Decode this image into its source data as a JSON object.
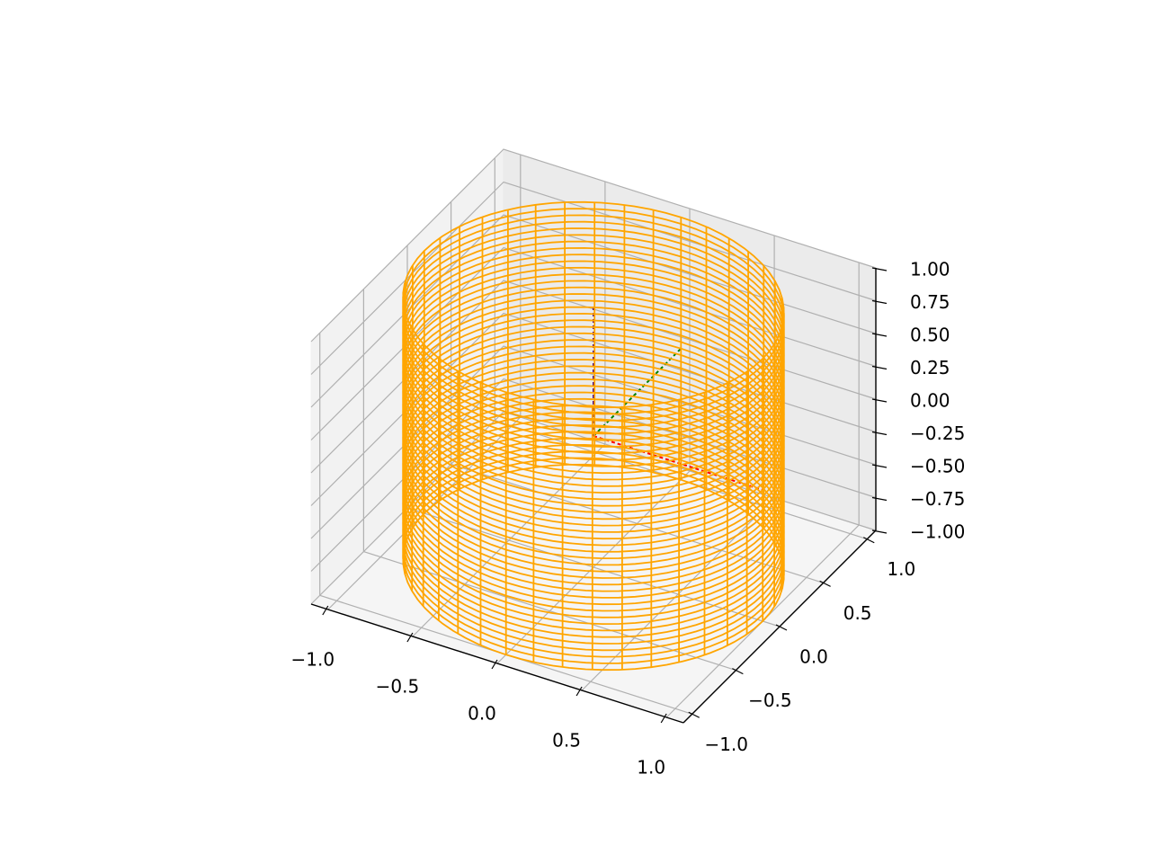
{
  "chart_data": {
    "type": "wireframe3d",
    "xlim": [
      -1.1,
      1.1
    ],
    "ylim": [
      -1.1,
      1.1
    ],
    "zlim": [
      -1,
      1
    ],
    "xticks": [
      {
        "value": -1,
        "label": "−1.0"
      },
      {
        "value": -0.5,
        "label": "−0.5"
      },
      {
        "value": 0,
        "label": "0.0"
      },
      {
        "value": 0.5,
        "label": "0.5"
      },
      {
        "value": 1,
        "label": "1.0"
      }
    ],
    "yticks": [
      {
        "value": -1,
        "label": "−1.0"
      },
      {
        "value": -0.5,
        "label": "−0.5"
      },
      {
        "value": 0,
        "label": "0.0"
      },
      {
        "value": 0.5,
        "label": "0.5"
      },
      {
        "value": 1,
        "label": "1.0"
      }
    ],
    "zticks": [
      {
        "value": -1,
        "label": "−1.00"
      },
      {
        "value": -0.75,
        "label": "−0.75"
      },
      {
        "value": -0.5,
        "label": "−0.50"
      },
      {
        "value": -0.25,
        "label": "−0.25"
      },
      {
        "value": 0,
        "label": "0.00"
      },
      {
        "value": 0.25,
        "label": "0.25"
      },
      {
        "value": 0.5,
        "label": "0.50"
      },
      {
        "value": 0.75,
        "label": "0.75"
      },
      {
        "value": 1,
        "label": "1.00"
      }
    ],
    "grid": true,
    "surface": {
      "color": "#ffa500",
      "radius": 1,
      "meridians": 40,
      "z": [
        -1,
        -0.95,
        -0.9,
        -0.85,
        -0.8,
        -0.75,
        -0.7,
        -0.65,
        -0.6,
        -0.55,
        -0.5,
        -0.45,
        -0.4,
        -0.35,
        -0.3,
        -0.25,
        -0.2,
        -0.15,
        -0.1,
        -0.05,
        0,
        0.05,
        0.1,
        0.15,
        0.2,
        0.25,
        0.3,
        0.35,
        0.4,
        0.45,
        0.5,
        0.55,
        0.6,
        0.65,
        0.7,
        0.75,
        0.8,
        0.85,
        0.9,
        0.95,
        1
      ]
    },
    "lines": [
      {
        "color": "#ff0000",
        "x": [
          0,
          1
        ],
        "y": [
          0,
          0
        ],
        "z": [
          0,
          0
        ]
      },
      {
        "color": "#008000",
        "x": [
          0,
          0
        ],
        "y": [
          0,
          1
        ],
        "z": [
          0,
          0
        ]
      },
      {
        "color": "#4b0082",
        "x": [
          0,
          0
        ],
        "y": [
          0,
          0
        ],
        "z": [
          0,
          1
        ]
      }
    ]
  }
}
